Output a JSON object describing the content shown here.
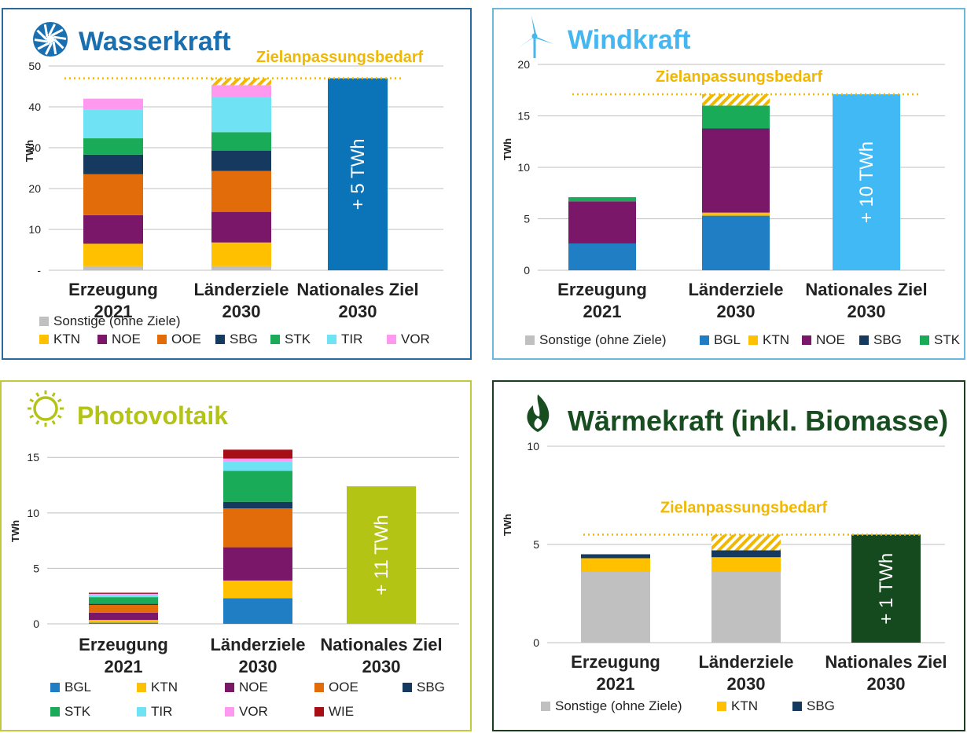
{
  "colors": {
    "Sonstige (ohne Ziele)": "#c0c0c0",
    "BGL": "#1f7ec4",
    "KTN": "#ffc000",
    "NOE": "#7a1768",
    "OOE": "#e36c0a",
    "SBG": "#163a5f",
    "STK": "#1aab58",
    "TIR": "#6fe3f3",
    "VOR": "#ff99f0",
    "WIE": "#a50f15",
    "gap": "#f0b800"
  },
  "chart_data": [
    {
      "id": "wasser",
      "type": "bar",
      "stacked": true,
      "icon": "water-turbine-icon",
      "title": "Wasserkraft",
      "title_color": "#1a6fb0",
      "border_color": "#2a6a9a",
      "ylabel": "TWh",
      "ylim": [
        0,
        50
      ],
      "yticks": [
        "-",
        "10",
        "20",
        "30",
        "40",
        "50"
      ],
      "yticks_values": [
        0,
        10,
        20,
        30,
        40,
        50
      ],
      "categories": [
        "Erzeugung 2021",
        "Länderziele 2030",
        "Nationales Ziel 2030"
      ],
      "category_labels": [
        [
          "Erzeugung",
          "2021"
        ],
        [
          "Länderziele",
          "2030"
        ],
        [
          "Nationales Ziel",
          "2030"
        ]
      ],
      "series": [
        {
          "name": "Sonstige (ohne Ziele)",
          "values": [
            1.0,
            1.0,
            0
          ]
        },
        {
          "name": "KTN",
          "values": [
            5.5,
            5.8,
            0
          ]
        },
        {
          "name": "NOE",
          "values": [
            7.0,
            7.5,
            0
          ]
        },
        {
          "name": "OOE",
          "values": [
            10.0,
            10.0,
            0
          ]
        },
        {
          "name": "SBG",
          "values": [
            4.8,
            5.0,
            0
          ]
        },
        {
          "name": "STK",
          "values": [
            4.0,
            4.5,
            0
          ]
        },
        {
          "name": "TIR",
          "values": [
            7.0,
            8.5,
            0
          ]
        },
        {
          "name": "VOR",
          "values": [
            2.7,
            3.0,
            0
          ]
        }
      ],
      "gap_values": [
        0,
        1.7,
        0
      ],
      "national_value": 47,
      "national_color": "#0b73b8",
      "national_label": "+ 5 TWh",
      "target_line": 47,
      "target_label": "Zielanpassungsbedarf",
      "legend_rows": [
        [
          "Sonstige (ohne Ziele)"
        ],
        [
          "KTN",
          "NOE",
          "OOE",
          "SBG",
          "STK",
          "TIR",
          "VOR"
        ]
      ]
    },
    {
      "id": "wind",
      "type": "bar",
      "stacked": true,
      "icon": "wind-turbine-icon",
      "title": "Windkraft",
      "title_color": "#45b6ef",
      "border_color": "#6ab8de",
      "ylabel": "TWh",
      "ylim": [
        0,
        20
      ],
      "yticks": [
        "0",
        "5",
        "10",
        "15",
        "20"
      ],
      "yticks_values": [
        0,
        5,
        10,
        15,
        20
      ],
      "categories": [
        "Erzeugung 2021",
        "Länderziele 2030",
        "Nationales Ziel 2030"
      ],
      "category_labels": [
        [
          "Erzeugung",
          "2021"
        ],
        [
          "Länderziele",
          "2030"
        ],
        [
          "Nationales Ziel",
          "2030"
        ]
      ],
      "series": [
        {
          "name": "Sonstige (ohne Ziele)",
          "values": [
            0,
            0,
            0
          ]
        },
        {
          "name": "BGL",
          "values": [
            2.6,
            5.3,
            0
          ]
        },
        {
          "name": "KTN",
          "values": [
            0,
            0.3,
            0
          ]
        },
        {
          "name": "NOE",
          "values": [
            4.1,
            8.1,
            0
          ]
        },
        {
          "name": "SBG",
          "values": [
            0,
            0.1,
            0
          ]
        },
        {
          "name": "STK",
          "values": [
            0.4,
            2.2,
            0
          ]
        }
      ],
      "gap_values": [
        0,
        1.1,
        0
      ],
      "national_value": 17.1,
      "national_color": "#40b9f5",
      "national_label": "+ 10 TWh",
      "target_line": 17.1,
      "target_label": "Zielanpassungsbedarf",
      "legend_rows": [
        [
          "Sonstige (ohne Ziele)",
          "BGL",
          "KTN",
          "NOE",
          "SBG",
          "STK"
        ]
      ]
    },
    {
      "id": "pv",
      "type": "bar",
      "stacked": true,
      "icon": "sun-icon",
      "title": "Photovoltaik",
      "title_color": "#b4c416",
      "border_color": "#c3c93e",
      "ylabel": "TWh",
      "ylim": [
        0,
        17
      ],
      "yticks": [
        "0",
        "5",
        "10",
        "15"
      ],
      "yticks_values": [
        0,
        5,
        10,
        15
      ],
      "categories": [
        "Erzeugung 2021",
        "Länderziele 2030",
        "Nationales Ziel 2030"
      ],
      "category_labels": [
        [
          "Erzeugung",
          "2021"
        ],
        [
          "Länderziele",
          "2030"
        ],
        [
          "Nationales Ziel",
          "2030"
        ]
      ],
      "series": [
        {
          "name": "BGL",
          "values": [
            0.1,
            2.3,
            0
          ]
        },
        {
          "name": "KTN",
          "values": [
            0.25,
            1.6,
            0
          ]
        },
        {
          "name": "NOE",
          "values": [
            0.65,
            3.0,
            0
          ]
        },
        {
          "name": "OOE",
          "values": [
            0.7,
            3.5,
            0
          ]
        },
        {
          "name": "SBG",
          "values": [
            0.1,
            0.6,
            0
          ]
        },
        {
          "name": "STK",
          "values": [
            0.6,
            2.8,
            0
          ]
        },
        {
          "name": "TIR",
          "values": [
            0.2,
            0.8,
            0
          ]
        },
        {
          "name": "VOR",
          "values": [
            0.1,
            0.3,
            0
          ]
        },
        {
          "name": "WIE",
          "values": [
            0.1,
            0.8,
            0
          ]
        }
      ],
      "gap_values": [
        0,
        0,
        0
      ],
      "national_value": 12.4,
      "national_color": "#b4c414",
      "national_label": "+ 11 TWh",
      "target_line": null,
      "target_label": "",
      "legend_rows": [
        [
          "BGL",
          "KTN",
          "NOE",
          "OOE",
          "SBG"
        ],
        [
          "STK",
          "TIR",
          "VOR",
          "WIE"
        ]
      ]
    },
    {
      "id": "waerme",
      "type": "bar",
      "stacked": true,
      "icon": "flame-icon",
      "title": "Wärmekraft (inkl. Biomasse)",
      "title_color": "#174d1f",
      "border_color": "#1d3d22",
      "ylabel": "TWh",
      "ylim": [
        0,
        10
      ],
      "yticks": [
        "0",
        "5",
        "10"
      ],
      "yticks_values": [
        0,
        5,
        10
      ],
      "categories": [
        "Erzeugung 2021",
        "Länderziele 2030",
        "Nationales Ziel 2030"
      ],
      "category_labels": [
        [
          "Erzeugung",
          "2021"
        ],
        [
          "Länderziele",
          "2030"
        ],
        [
          "Nationales Ziel",
          "2030"
        ]
      ],
      "series": [
        {
          "name": "Sonstige (ohne Ziele)",
          "values": [
            3.6,
            3.6,
            0
          ]
        },
        {
          "name": "KTN",
          "values": [
            0.7,
            0.75,
            0
          ]
        },
        {
          "name": "SBG",
          "values": [
            0.2,
            0.35,
            0
          ]
        }
      ],
      "gap_values": [
        0,
        0.8,
        0
      ],
      "national_value": 5.5,
      "national_color": "#144a1d",
      "national_label": "+ 1 TWh",
      "target_line": 5.5,
      "target_label": "Zielanpassungsbedarf",
      "legend_rows": [
        [
          "Sonstige (ohne Ziele)",
          "KTN",
          "SBG"
        ]
      ]
    }
  ]
}
